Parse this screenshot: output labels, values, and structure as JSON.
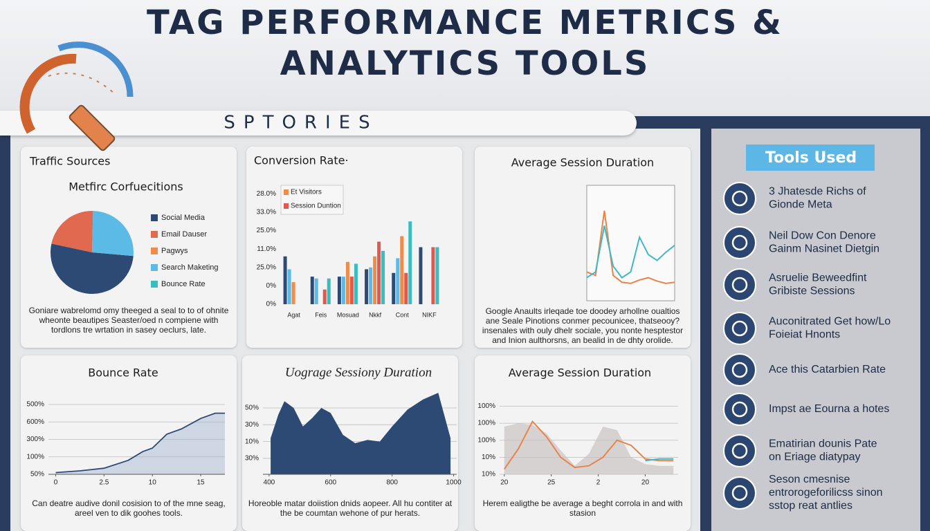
{
  "header": {
    "title_lines": [
      "TAG PERFORMANCE METRICS &",
      "ANALYTICS TOOLS"
    ],
    "section": "SPTORIES"
  },
  "chart_data": [
    {
      "type": "pie",
      "title": "Traffic Sources",
      "subtitle": "Metfirc Corfuecitions",
      "categories": [
        "Social Media",
        "Email Dauser",
        "Pagwys",
        "Search Maketing",
        "Bounce Rate"
      ],
      "values": [
        52,
        22,
        0,
        26,
        0
      ],
      "colors": [
        "#2d4a75",
        "#e0694f",
        "#f08c4a",
        "#5cbbe6",
        "#3bbdbf"
      ],
      "note": "Goniare wabrelomd omy theeged a seal to to of ohnite wheonte beautipes Seaster/oed n compiene with tordlons tre wrtation in sasey oeclurs, late."
    },
    {
      "type": "bar",
      "title": "Conversion Rate·",
      "categories": [
        "Agat",
        "Feis",
        "Mosuad",
        "Nkkf",
        "Cont",
        "NIKF"
      ],
      "series": [
        {
          "color": "#2d4a75",
          "values": [
            2.6,
            1.5,
            1.5,
            1.9,
            1.7,
            3.1
          ]
        },
        {
          "color": "#5cbbe6",
          "values": [
            1.9,
            1.4,
            1.5,
            2.0,
            2.5,
            0
          ]
        },
        {
          "name": "Et Visitors",
          "color": "#f08c4a",
          "values": [
            1.2,
            0,
            2.3,
            2.6,
            3.7,
            0
          ]
        },
        {
          "name": "Session Duntion",
          "color": "#e0594f",
          "values": [
            0,
            0.8,
            1.5,
            3.4,
            1.7,
            3.1
          ]
        },
        {
          "color": "#3bbdbf",
          "values": [
            0,
            1.4,
            2.2,
            2.9,
            4.5,
            3.1
          ]
        }
      ],
      "ylim": [
        0,
        6.2
      ],
      "yticks": [
        {
          "value": 0,
          "label": "0%"
        },
        {
          "value": 1,
          "label": "0%"
        },
        {
          "value": 2,
          "label": "25.0%"
        },
        {
          "value": 3,
          "label": "11.0%"
        },
        {
          "value": 4,
          "label": "25.0%"
        },
        {
          "value": 5,
          "label": "33.0%"
        },
        {
          "value": 6,
          "label": "28.0%"
        }
      ]
    },
    {
      "type": "line",
      "title": "Average Session Duration",
      "x": [
        0,
        1,
        2,
        3,
        4,
        5,
        6,
        7,
        8,
        9,
        10
      ],
      "xlim": [
        0,
        10
      ],
      "ylim": [
        0,
        10
      ],
      "series": [
        {
          "color": "#e8834a",
          "values": [
            2.5,
            2.2,
            7.8,
            2.2,
            1.6,
            1.5,
            1.8,
            2.0,
            1.7,
            1.5,
            1.6
          ]
        },
        {
          "color": "#3fb8c4",
          "values": [
            2.0,
            2.5,
            6.5,
            3.0,
            2.0,
            2.5,
            5.5,
            4.0,
            3.5,
            4.2,
            4.8
          ]
        }
      ],
      "note": "Google Anaults irleqade toe doodey arhollne oualtios ane Seale Pinotions conmer pecounicee, thatseooy? insenales with ouly dhelr sociale, you nonte hesptestor and Inion aulthorsns, an bealid in de dhty orolide."
    },
    {
      "type": "area",
      "title": "Bounce Rate",
      "x": [
        0,
        0.5,
        1,
        1.5,
        1.8,
        2.0,
        2.3,
        2.6,
        3.0,
        3.3,
        3.5
      ],
      "series": [
        {
          "color": "#2d4a75",
          "values": [
            0.1,
            0.2,
            0.35,
            0.8,
            1.3,
            1.5,
            2.3,
            2.6,
            3.2,
            3.5,
            3.5
          ]
        }
      ],
      "xlim": [
        -0.15,
        3.5
      ],
      "xticks": [
        0,
        {
          "value": 1,
          "label": "2.5"
        },
        {
          "value": 2,
          "label": "10"
        },
        {
          "value": 3,
          "label": "15"
        }
      ],
      "ylim": [
        0,
        4
      ],
      "yticks": [
        {
          "value": 0,
          "label": "50%"
        },
        {
          "value": 1,
          "label": "100%"
        },
        {
          "value": 2,
          "label": "300%"
        },
        {
          "value": 3,
          "label": "600%"
        },
        {
          "value": 4,
          "label": "500%"
        }
      ],
      "grid": true,
      "note": "Can deatre audive donil cosision to of the mne seag, areel ven to dik goohes tools."
    },
    {
      "type": "area",
      "title": "Uograge Sessiony Duration",
      "x": [
        405,
        430,
        450,
        480,
        510,
        540,
        570,
        600,
        640,
        680,
        720,
        760,
        800,
        850,
        900,
        950,
        990
      ],
      "series": [
        {
          "color": "#2d4a75",
          "values": [
            1.2,
            2.6,
            3.4,
            3.0,
            1.9,
            2.4,
            3.0,
            2.7,
            1.4,
            0.9,
            1.1,
            1.0,
            1.9,
            2.9,
            3.5,
            3.9,
            1.2
          ]
        }
      ],
      "xlim": [
        380,
        1010
      ],
      "xticks": [
        400,
        600,
        800,
        1000
      ],
      "ylim": [
        -0.95,
        3.7
      ],
      "yticks": [
        {
          "value": 0,
          "label": "30%"
        },
        {
          "value": 1,
          "label": "10%"
        },
        {
          "value": 2,
          "label": "30%"
        },
        {
          "value": 3,
          "label": "50%"
        }
      ],
      "grid": true,
      "note": "Horeoble matar doiistion dnids aopeer. All hu contiter at the be coumtan wehone of pur herats."
    },
    {
      "type": "line",
      "title": "Average Session Duration",
      "x": [
        0,
        0.3,
        0.6,
        0.9,
        1.2,
        1.5,
        1.8,
        2.1,
        2.4,
        2.7,
        3.0,
        3.3,
        3.6
      ],
      "series": [
        {
          "color": "#c9c3c3",
          "area": true,
          "values": [
            2.8,
            3.0,
            2.9,
            2.4,
            1.4,
            0.5,
            1.2,
            2.8,
            2.6,
            1.0,
            0.6,
            0.5,
            0.5
          ]
        },
        {
          "color": "#e8834a",
          "values": [
            0.3,
            1.5,
            3.1,
            2.2,
            1.0,
            0.4,
            0.5,
            1.0,
            2.0,
            1.7,
            0.9,
            0.8,
            0.8
          ]
        },
        {
          "color": "#3fb8c4",
          "values": [
            null,
            null,
            null,
            null,
            null,
            null,
            null,
            null,
            null,
            null,
            0.8,
            0.9,
            0.9
          ]
        }
      ],
      "xlim": [
        -0.1,
        3.7
      ],
      "xticks": [
        {
          "value": 0,
          "label": "20"
        },
        {
          "value": 1,
          "label": "25"
        },
        {
          "value": 2,
          "label": "2"
        },
        {
          "value": 3,
          "label": "20"
        }
      ],
      "ylim": [
        0,
        4.1
      ],
      "yticks": [
        {
          "value": 0,
          "label": "10%"
        },
        {
          "value": 1,
          "label": "10%"
        },
        {
          "value": 2,
          "label": "100%"
        },
        {
          "value": 3,
          "label": "100%"
        },
        {
          "value": 4,
          "label": "100%"
        }
      ],
      "grid": true,
      "note": "Herem ealigthe be average a beght corrola in and with stasion"
    }
  ],
  "tools": {
    "title": "Tools Used",
    "items": [
      {
        "lines": [
          "3 Jhatesde Richs of",
          "Gionde Meta"
        ]
      },
      {
        "lines": [
          "Neil Dow Con Denore",
          "Gainm Nasinet Dietgin"
        ]
      },
      {
        "lines": [
          "Asruelie Beweedfint",
          "Gribiste Sessions"
        ]
      },
      {
        "lines": [
          "Auconitrated Get how/Lo",
          "Foieiat Hnonts"
        ]
      },
      {
        "lines": [
          "Ace this Catarbien Rate"
        ]
      },
      {
        "lines": [
          "Impst ae Eourna a hotes"
        ]
      },
      {
        "lines": [
          "Ematirian dounis Pate",
          "on Eriage diatypay"
        ]
      },
      {
        "lines": [
          "Seson cmesnise",
          "entrorogeforilicss sinon",
          "sstop reat antlies"
        ]
      }
    ]
  }
}
